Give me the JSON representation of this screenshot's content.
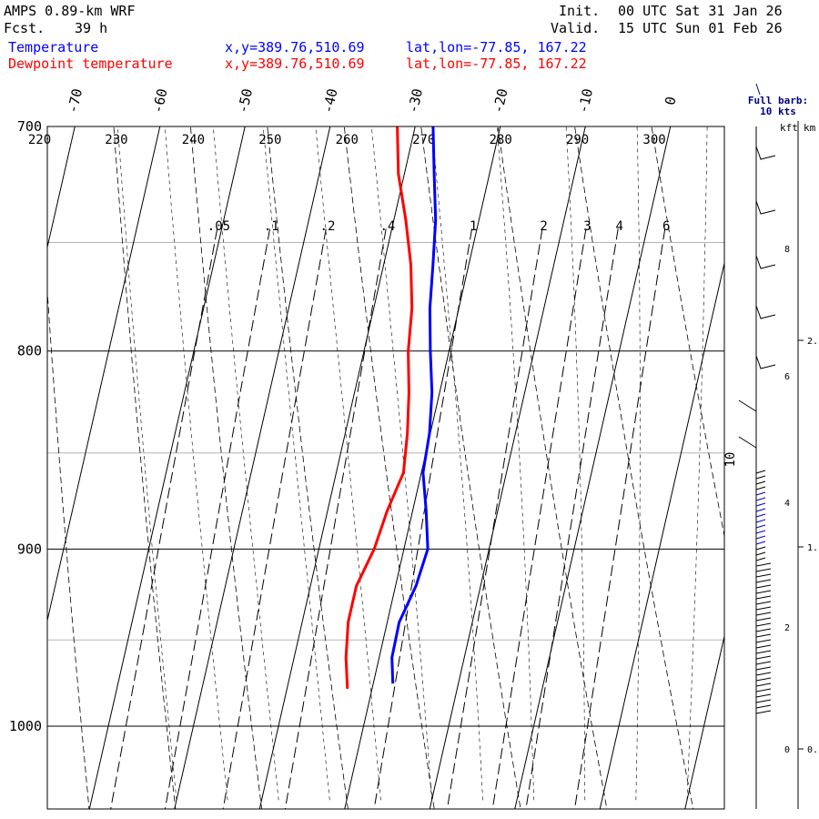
{
  "header": {
    "model": "AMPS 0.89-km WRF",
    "fcst_label": "Fcst.",
    "fcst_value": "39 h",
    "init_label": "Init.",
    "init_value": "00 UTC Sat 31 Jan 26",
    "valid_label": "Valid.",
    "valid_value": "15 UTC Sun 01 Feb 26"
  },
  "legend": [
    {
      "name": "Temperature",
      "xy": "x,y=389.76,510.69",
      "latlon": "lat,lon=-77.85, 167.22",
      "color": "#0000ff"
    },
    {
      "name": "Dewpoint temperature",
      "xy": "x,y=389.76,510.69",
      "latlon": "lat,lon=-77.85, 167.22",
      "color": "#ff0000"
    }
  ],
  "barb_legend": {
    "line1": "Full barb:",
    "line2": "10 kts",
    "color": "#000080"
  },
  "height_axis": {
    "kft_label": "kft",
    "km_label": "km",
    "kft_ticks": [
      "8",
      "6",
      "4",
      "2",
      "0"
    ],
    "km_ticks": [
      "2.",
      "1.",
      "0."
    ]
  },
  "chart_data": {
    "type": "line",
    "title": "",
    "y_axis": "pressure (hPa), log scale, inverted",
    "ylim": [
      1045,
      700
    ],
    "pressure_labels": [
      "700",
      "800",
      "900",
      "1000"
    ],
    "isotherm_labels": [
      "-70",
      "-60",
      "-50",
      "-40",
      "-30",
      "-20",
      "-10",
      "0"
    ],
    "theta_labels": [
      "220",
      "230",
      "240",
      "250",
      "260",
      "270",
      "280",
      "290",
      "300"
    ],
    "mixing_ratio_labels": [
      ".05",
      ".1",
      ".2",
      ".4",
      "1",
      "2",
      "3",
      "4",
      "6"
    ],
    "annotation": "10",
    "series": [
      {
        "name": "Temperature",
        "color": "#0000ff",
        "x_units": "deg C",
        "points": [
          [
            975,
            -17.7
          ],
          [
            960,
            -18.5
          ],
          [
            940,
            -18.6
          ],
          [
            920,
            -17.6
          ],
          [
            900,
            -17.2
          ],
          [
            880,
            -18.4
          ],
          [
            860,
            -19.8
          ],
          [
            840,
            -20.1
          ],
          [
            820,
            -20.9
          ],
          [
            800,
            -22.2
          ],
          [
            780,
            -23.4
          ],
          [
            760,
            -24.2
          ],
          [
            740,
            -25.1
          ],
          [
            720,
            -26.5
          ],
          [
            700,
            -27.9
          ]
        ]
      },
      {
        "name": "Dewpoint temperature",
        "color": "#ff0000",
        "x_units": "deg C",
        "points": [
          [
            978,
            -22.9
          ],
          [
            960,
            -23.9
          ],
          [
            940,
            -24.6
          ],
          [
            920,
            -24.6
          ],
          [
            900,
            -23.5
          ],
          [
            880,
            -23.0
          ],
          [
            860,
            -22.1
          ],
          [
            840,
            -22.7
          ],
          [
            820,
            -23.6
          ],
          [
            800,
            -24.8
          ],
          [
            780,
            -25.5
          ],
          [
            760,
            -26.8
          ],
          [
            740,
            -28.6
          ],
          [
            720,
            -30.7
          ],
          [
            700,
            -32.1
          ]
        ]
      }
    ],
    "wind_barbs": {
      "label": "Full barb: 10 kts"
    }
  }
}
